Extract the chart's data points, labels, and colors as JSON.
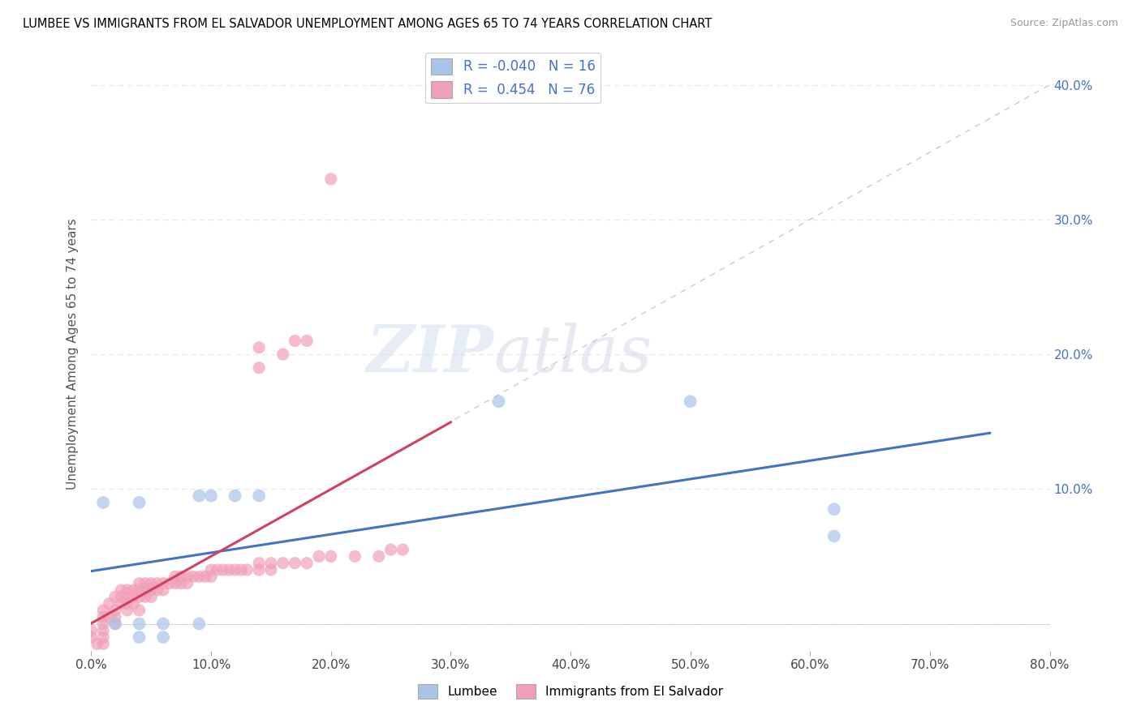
{
  "title": "LUMBEE VS IMMIGRANTS FROM EL SALVADOR UNEMPLOYMENT AMONG AGES 65 TO 74 YEARS CORRELATION CHART",
  "source": "Source: ZipAtlas.com",
  "ylabel": "Unemployment Among Ages 65 to 74 years",
  "lumbee_r": -0.04,
  "lumbee_n": 16,
  "salvador_r": 0.454,
  "salvador_n": 76,
  "lumbee_color": "#a8c4e8",
  "lumbee_line_color": "#4472c4",
  "salvador_color": "#f0a0b8",
  "salvador_line_color": "#d04060",
  "xlim": [
    0.0,
    0.8
  ],
  "ylim": [
    -0.02,
    0.42
  ],
  "xticks": [
    0.0,
    0.1,
    0.2,
    0.3,
    0.4,
    0.5,
    0.6,
    0.7,
    0.8
  ],
  "xticklabels": [
    "0.0%",
    "10.0%",
    "20.0%",
    "30.0%",
    "40.0%",
    "50.0%",
    "60.0%",
    "70.0%",
    "80.0%"
  ],
  "yticks": [
    0.0,
    0.1,
    0.2,
    0.3,
    0.4
  ],
  "yticklabels": [
    "",
    "10.0%",
    "20.0%",
    "30.0%",
    "40.0%"
  ],
  "grid_color": "#e8e8e8",
  "diagonal_color": "#cccccc",
  "lumbee_points": [
    [
      0.01,
      0.09
    ],
    [
      0.04,
      0.09
    ],
    [
      0.02,
      0.0
    ],
    [
      0.04,
      0.0
    ],
    [
      0.06,
      0.0
    ],
    [
      0.09,
      0.0
    ],
    [
      0.04,
      -0.01
    ],
    [
      0.06,
      -0.01
    ],
    [
      0.09,
      0.095
    ],
    [
      0.1,
      0.095
    ],
    [
      0.12,
      0.095
    ],
    [
      0.14,
      0.095
    ],
    [
      0.34,
      0.165
    ],
    [
      0.5,
      0.165
    ],
    [
      0.62,
      0.085
    ],
    [
      0.62,
      0.065
    ]
  ],
  "salvador_points": [
    [
      0.0,
      -0.005
    ],
    [
      0.0,
      -0.01
    ],
    [
      0.005,
      -0.015
    ],
    [
      0.01,
      -0.015
    ],
    [
      0.01,
      -0.01
    ],
    [
      0.01,
      -0.005
    ],
    [
      0.01,
      0.0
    ],
    [
      0.01,
      0.005
    ],
    [
      0.01,
      0.01
    ],
    [
      0.015,
      0.005
    ],
    [
      0.015,
      0.015
    ],
    [
      0.02,
      0.0
    ],
    [
      0.02,
      0.005
    ],
    [
      0.02,
      0.01
    ],
    [
      0.02,
      0.02
    ],
    [
      0.025,
      0.015
    ],
    [
      0.025,
      0.02
    ],
    [
      0.025,
      0.025
    ],
    [
      0.03,
      0.01
    ],
    [
      0.03,
      0.015
    ],
    [
      0.03,
      0.02
    ],
    [
      0.03,
      0.025
    ],
    [
      0.035,
      0.015
    ],
    [
      0.035,
      0.02
    ],
    [
      0.035,
      0.025
    ],
    [
      0.04,
      0.01
    ],
    [
      0.04,
      0.02
    ],
    [
      0.04,
      0.025
    ],
    [
      0.04,
      0.03
    ],
    [
      0.045,
      0.02
    ],
    [
      0.045,
      0.025
    ],
    [
      0.045,
      0.03
    ],
    [
      0.05,
      0.02
    ],
    [
      0.05,
      0.025
    ],
    [
      0.05,
      0.03
    ],
    [
      0.055,
      0.025
    ],
    [
      0.055,
      0.03
    ],
    [
      0.06,
      0.025
    ],
    [
      0.06,
      0.03
    ],
    [
      0.065,
      0.03
    ],
    [
      0.07,
      0.03
    ],
    [
      0.07,
      0.035
    ],
    [
      0.075,
      0.03
    ],
    [
      0.075,
      0.035
    ],
    [
      0.08,
      0.03
    ],
    [
      0.08,
      0.035
    ],
    [
      0.085,
      0.035
    ],
    [
      0.09,
      0.035
    ],
    [
      0.095,
      0.035
    ],
    [
      0.1,
      0.035
    ],
    [
      0.1,
      0.04
    ],
    [
      0.105,
      0.04
    ],
    [
      0.11,
      0.04
    ],
    [
      0.115,
      0.04
    ],
    [
      0.12,
      0.04
    ],
    [
      0.125,
      0.04
    ],
    [
      0.13,
      0.04
    ],
    [
      0.14,
      0.04
    ],
    [
      0.14,
      0.045
    ],
    [
      0.15,
      0.04
    ],
    [
      0.15,
      0.045
    ],
    [
      0.16,
      0.045
    ],
    [
      0.17,
      0.045
    ],
    [
      0.18,
      0.045
    ],
    [
      0.19,
      0.05
    ],
    [
      0.2,
      0.05
    ],
    [
      0.22,
      0.05
    ],
    [
      0.24,
      0.05
    ],
    [
      0.25,
      0.055
    ],
    [
      0.26,
      0.055
    ],
    [
      0.14,
      0.19
    ],
    [
      0.16,
      0.2
    ],
    [
      0.17,
      0.21
    ],
    [
      0.18,
      0.21
    ],
    [
      0.14,
      0.205
    ],
    [
      0.2,
      0.33
    ]
  ]
}
